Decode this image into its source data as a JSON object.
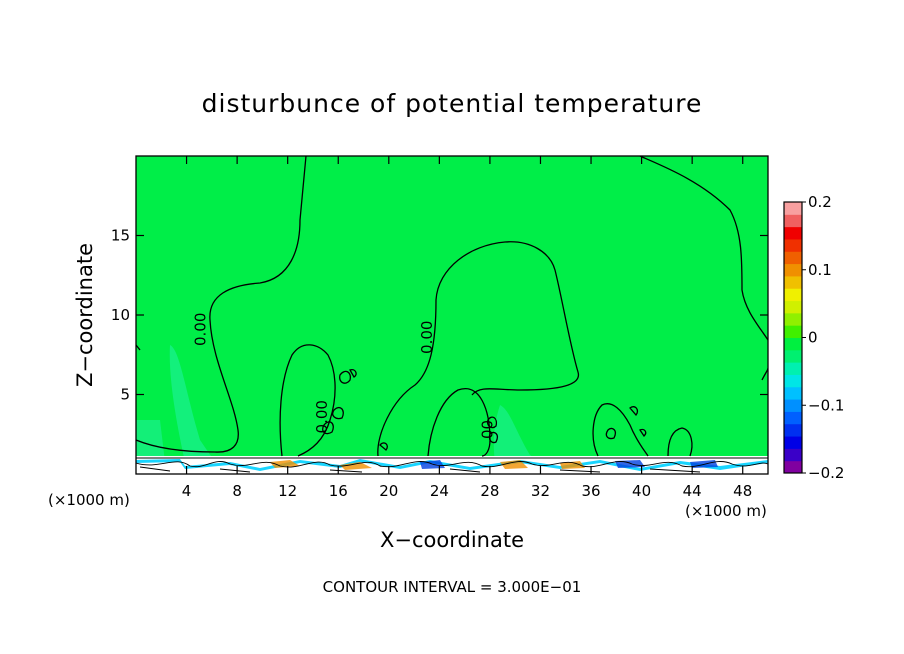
{
  "chart_data": {
    "type": "contour",
    "title": "disturbunce of potential temperature",
    "xlabel": "X−coordinate",
    "ylabel": "Z−coordinate",
    "x_unit": "(×1000 m)",
    "y_unit": "(×1000 m)",
    "xlim": [
      0,
      50
    ],
    "ylim": [
      0,
      20
    ],
    "x_ticks": [
      4,
      8,
      12,
      16,
      20,
      24,
      28,
      32,
      36,
      40,
      44,
      48
    ],
    "y_ticks": [
      5,
      10,
      15
    ],
    "contour_interval_text": "CONTOUR INTERVAL = 3.000E−01",
    "contour_labels": [
      {
        "text": "0.00",
        "x": 5.5,
        "y": 9.1
      },
      {
        "text": "0.00",
        "x": 23.4,
        "y": 8.6
      },
      {
        "text": "0.00",
        "x": 15.1,
        "y": 3.6
      },
      {
        "text": "00",
        "x": 28.2,
        "y": 2.8
      }
    ],
    "colorbar": {
      "min": -0.2,
      "max": 0.2,
      "tick_values": [
        0.2,
        0.1,
        0,
        -0.1,
        -0.2
      ],
      "tick_labels": [
        "0.2",
        "0.1",
        "0",
        "−0.1",
        "−0.2"
      ],
      "colors": [
        "#8000a0",
        "#3a00c8",
        "#0000e6",
        "#0030f0",
        "#0060ff",
        "#0090ff",
        "#00c0ff",
        "#00e6e6",
        "#00f0b0",
        "#00f070",
        "#00f040",
        "#40f000",
        "#90f000",
        "#d0f000",
        "#f0f000",
        "#f0c000",
        "#f09000",
        "#f06000",
        "#f03000",
        "#f00000",
        "#f06060",
        "#f8a0a0"
      ]
    }
  }
}
